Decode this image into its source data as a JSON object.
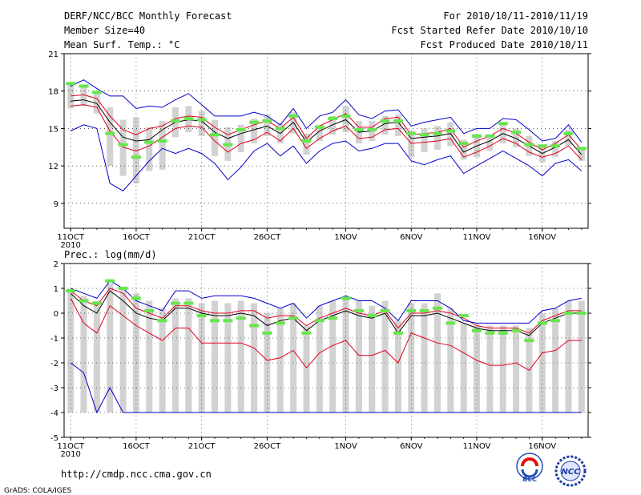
{
  "header": {
    "title": "DERF/NCC/BCC Monthly Forecast",
    "member_size": "Member Size=40",
    "period": "For 2010/10/11-2010/11/19",
    "fcst_started": "Fcst Started Refer Date 2010/10/10",
    "fcst_produced": "Fcst Produced Date 2010/10/11"
  },
  "footer": {
    "url": "http://cmdp.ncc.cma.gov.cn",
    "credit": "GrADS: COLA/IGES",
    "logo_bcc": "BCC",
    "logo_ncc": "NCC"
  },
  "colors": {
    "box": "#d2d2d2",
    "mean": "#000000",
    "spread": "#e0001c",
    "range": "#0000c8",
    "obs": "#66e64d",
    "grid": "#000000"
  },
  "chart_data": [
    {
      "type": "line",
      "title": "Mean Surf. Temp.: °C",
      "x_labels": [
        "11OCT",
        "16OCT",
        "21OCT",
        "26OCT",
        "1NOV",
        "6NOV",
        "11NOV",
        "16NOV"
      ],
      "x_label_days": [
        1,
        6,
        11,
        16,
        22,
        27,
        32,
        37
      ],
      "year_label": "2010",
      "day_range": [
        0.5,
        40.5
      ],
      "ylim": [
        7,
        21
      ],
      "yticks": [
        9,
        12,
        15,
        18,
        21
      ],
      "series": [
        {
          "name": "ensemble mean",
          "color": "#000000",
          "values": [
            17.2,
            17.3,
            17.0,
            15.5,
            14.3,
            14.0,
            14.1,
            14.9,
            15.5,
            15.7,
            15.6,
            14.7,
            14.2,
            14.6,
            14.9,
            15.2,
            14.6,
            15.5,
            13.9,
            14.8,
            15.3,
            15.7,
            14.7,
            14.8,
            15.4,
            15.5,
            14.2,
            14.3,
            14.4,
            14.6,
            13.1,
            13.6,
            14.0,
            14.6,
            14.2,
            13.6,
            13.0,
            13.5,
            14.1,
            12.9
          ]
        },
        {
          "name": "upper spread",
          "color": "#e0001c",
          "values": [
            17.6,
            17.7,
            17.4,
            16.0,
            14.9,
            14.5,
            15.0,
            15.2,
            15.8,
            16.0,
            15.9,
            15.1,
            14.5,
            14.9,
            15.3,
            15.6,
            15.0,
            15.9,
            14.2,
            15.2,
            15.7,
            16.2,
            15.1,
            15.1,
            15.8,
            15.9,
            14.5,
            14.6,
            14.7,
            15.0,
            13.5,
            14.0,
            14.4,
            15.0,
            14.6,
            13.9,
            13.3,
            13.8,
            14.5,
            13.3
          ]
        },
        {
          "name": "lower spread",
          "color": "#e0001c",
          "values": [
            16.8,
            16.9,
            16.7,
            14.8,
            13.5,
            13.2,
            13.6,
            14.3,
            15.0,
            15.2,
            15.1,
            14.0,
            13.1,
            13.8,
            14.1,
            14.7,
            14.0,
            15.0,
            13.4,
            14.2,
            14.8,
            15.2,
            14.2,
            14.3,
            14.9,
            15.0,
            13.8,
            13.9,
            14.0,
            14.2,
            12.7,
            13.1,
            13.6,
            14.2,
            13.8,
            13.1,
            12.7,
            13.0,
            13.6,
            12.5
          ]
        },
        {
          "name": "max member",
          "color": "#0000c8",
          "values": [
            18.4,
            18.9,
            18.2,
            17.6,
            17.6,
            16.6,
            16.8,
            16.7,
            17.3,
            17.8,
            16.9,
            16.0,
            16.0,
            16.0,
            16.3,
            16.0,
            15.3,
            16.6,
            15.0,
            16.0,
            16.3,
            17.3,
            16.1,
            15.8,
            16.4,
            16.5,
            15.2,
            15.5,
            15.7,
            15.9,
            14.6,
            15.0,
            15.0,
            15.8,
            15.7,
            14.9,
            14.0,
            14.2,
            15.3,
            13.9
          ]
        },
        {
          "name": "min member",
          "color": "#0000c8",
          "values": [
            14.8,
            15.3,
            15.0,
            10.6,
            10.0,
            11.2,
            12.4,
            13.4,
            13.0,
            13.4,
            13.0,
            12.2,
            10.9,
            11.9,
            13.2,
            13.8,
            12.8,
            13.6,
            12.2,
            13.2,
            13.8,
            14.0,
            13.2,
            13.4,
            13.8,
            13.8,
            12.4,
            12.1,
            12.5,
            12.8,
            11.4,
            12.0,
            12.6,
            13.2,
            12.6,
            12.0,
            11.2,
            12.2,
            12.5,
            11.6
          ]
        }
      ],
      "observed": [
        18.6,
        18.4,
        17.9,
        14.6,
        13.7,
        12.7,
        13.9,
        14.0,
        15.6,
        15.8,
        15.7,
        14.5,
        13.7,
        14.9,
        15.5,
        15.6,
        15.0,
        16.0,
        14.0,
        15.1,
        15.8,
        16.0,
        14.9,
        14.9,
        15.6,
        15.6,
        14.6,
        14.5,
        14.6,
        14.8,
        13.8,
        14.4,
        14.4,
        15.4,
        14.7,
        13.7,
        13.6,
        13.6,
        14.6,
        13.4
      ],
      "box_high": [
        18.6,
        18.4,
        17.9,
        16.7,
        15.7,
        15.9,
        15.1,
        15.6,
        16.7,
        16.8,
        16.4,
        15.7,
        15.1,
        15.3,
        15.8,
        16.1,
        15.4,
        16.3,
        14.6,
        15.3,
        16.0,
        16.8,
        15.6,
        15.6,
        16.0,
        16.1,
        14.8,
        15.0,
        15.2,
        15.5,
        14.1,
        14.4,
        14.4,
        15.4,
        15.0,
        14.4,
        13.6,
        14.0,
        14.9,
        13.4
      ],
      "box_low": [
        16.6,
        16.8,
        16.2,
        12.0,
        11.2,
        10.6,
        11.6,
        11.7,
        14.3,
        14.7,
        14.4,
        12.8,
        12.4,
        13.1,
        13.8,
        14.4,
        13.8,
        14.6,
        12.9,
        14.0,
        14.5,
        14.7,
        13.8,
        14.0,
        14.5,
        14.4,
        12.7,
        13.1,
        13.3,
        13.6,
        12.5,
        12.7,
        13.2,
        13.8,
        13.5,
        12.8,
        12.3,
        12.7,
        13.6,
        12.4
      ]
    },
    {
      "type": "line",
      "title": "Prec.: log(mm/d)",
      "x_labels": [
        "11OCT",
        "16OCT",
        "21OCT",
        "26OCT",
        "1NOV",
        "6NOV",
        "11NOV",
        "16NOV"
      ],
      "x_label_days": [
        1,
        6,
        11,
        16,
        22,
        27,
        32,
        37
      ],
      "year_label": "2010",
      "day_range": [
        0.5,
        40.5
      ],
      "ylim": [
        -5,
        2
      ],
      "yticks": [
        -5,
        -4,
        -3,
        -2,
        -1,
        0,
        1,
        2
      ],
      "series": [
        {
          "name": "ensemble mean",
          "color": "#000000",
          "values": [
            0.8,
            0.3,
            0.0,
            0.9,
            0.5,
            0.0,
            -0.2,
            -0.3,
            0.2,
            0.2,
            0.0,
            -0.1,
            -0.1,
            0.0,
            -0.1,
            -0.5,
            -0.3,
            -0.2,
            -0.7,
            -0.3,
            -0.1,
            0.1,
            -0.1,
            -0.2,
            0.0,
            -0.8,
            -0.1,
            -0.1,
            0.0,
            -0.2,
            -0.4,
            -0.6,
            -0.7,
            -0.7,
            -0.7,
            -0.9,
            -0.4,
            -0.2,
            0.0,
            0.0
          ]
        },
        {
          "name": "upper spread",
          "color": "#e0001c",
          "values": [
            0.9,
            0.5,
            0.3,
            1.0,
            0.8,
            0.2,
            0.0,
            -0.2,
            0.3,
            0.3,
            0.1,
            0.0,
            0.0,
            0.1,
            0.1,
            -0.2,
            -0.1,
            -0.1,
            -0.5,
            -0.2,
            0.0,
            0.2,
            0.0,
            -0.1,
            0.1,
            -0.6,
            0.0,
            0.0,
            0.1,
            0.0,
            -0.2,
            -0.5,
            -0.6,
            -0.6,
            -0.6,
            -0.8,
            -0.3,
            -0.1,
            0.1,
            0.1
          ]
        },
        {
          "name": "lower spread",
          "color": "#e0001c",
          "values": [
            0.6,
            -0.4,
            -0.8,
            0.3,
            -0.1,
            -0.5,
            -0.8,
            -1.1,
            -0.6,
            -0.6,
            -1.2,
            -1.2,
            -1.2,
            -1.2,
            -1.4,
            -1.9,
            -1.8,
            -1.5,
            -2.2,
            -1.6,
            -1.3,
            -1.1,
            -1.7,
            -1.7,
            -1.5,
            -2.0,
            -0.8,
            -1.0,
            -1.2,
            -1.3,
            -1.6,
            -1.9,
            -2.1,
            -2.1,
            -2.0,
            -2.3,
            -1.6,
            -1.5,
            -1.1,
            -1.1
          ]
        },
        {
          "name": "max member",
          "color": "#0000c8",
          "values": [
            1.0,
            0.8,
            0.6,
            1.3,
            1.0,
            0.5,
            0.3,
            0.1,
            0.9,
            0.9,
            0.6,
            0.7,
            0.7,
            0.7,
            0.6,
            0.4,
            0.2,
            0.4,
            -0.2,
            0.3,
            0.5,
            0.7,
            0.5,
            0.5,
            0.2,
            -0.3,
            0.5,
            0.5,
            0.5,
            0.2,
            -0.3,
            -0.4,
            -0.4,
            -0.4,
            -0.4,
            -0.4,
            0.1,
            0.2,
            0.5,
            0.6
          ]
        },
        {
          "name": "min member",
          "color": "#0000c8",
          "values": [
            -2.0,
            -2.4,
            -4.0,
            -3.0,
            -4.0,
            -4.0,
            -4.0,
            -4.0,
            -4.0,
            -4.0,
            -4.0,
            -4.0,
            -4.0,
            -4.0,
            -4.0,
            -4.0,
            -4.0,
            -4.0,
            -4.0,
            -4.0,
            -4.0,
            -4.0,
            -4.0,
            -4.0,
            -4.0,
            -4.0,
            -4.0,
            -4.0,
            -4.0,
            -4.0,
            -4.0,
            -4.0,
            -4.0,
            -4.0,
            -4.0,
            -4.0,
            -4.0,
            -4.0,
            -4.0,
            -4.0
          ]
        }
      ],
      "observed": [
        0.9,
        0.5,
        0.4,
        1.3,
        1.0,
        0.6,
        0.1,
        -0.3,
        0.4,
        0.4,
        -0.1,
        -0.3,
        -0.3,
        -0.2,
        -0.5,
        -0.8,
        -0.4,
        -0.2,
        -0.8,
        -0.3,
        -0.2,
        0.6,
        0.1,
        -0.1,
        0.1,
        -0.8,
        0.1,
        0.1,
        0.2,
        -0.4,
        -0.1,
        -0.7,
        -0.8,
        -0.8,
        -0.7,
        -1.1,
        -0.4,
        -0.3,
        0.0,
        0.0
      ],
      "box_high": [
        0.9,
        0.7,
        0.5,
        1.2,
        1.0,
        0.8,
        0.5,
        0.2,
        0.6,
        0.6,
        0.4,
        0.5,
        0.4,
        0.5,
        0.4,
        0.0,
        0.2,
        0.4,
        -0.5,
        0.3,
        0.5,
        0.6,
        0.5,
        0.3,
        0.5,
        -0.3,
        0.4,
        0.4,
        0.8,
        0.2,
        -0.4,
        -0.5,
        -0.5,
        -0.5,
        -0.5,
        -0.6,
        0.0,
        0.2,
        0.5,
        0.5
      ]
    }
  ]
}
